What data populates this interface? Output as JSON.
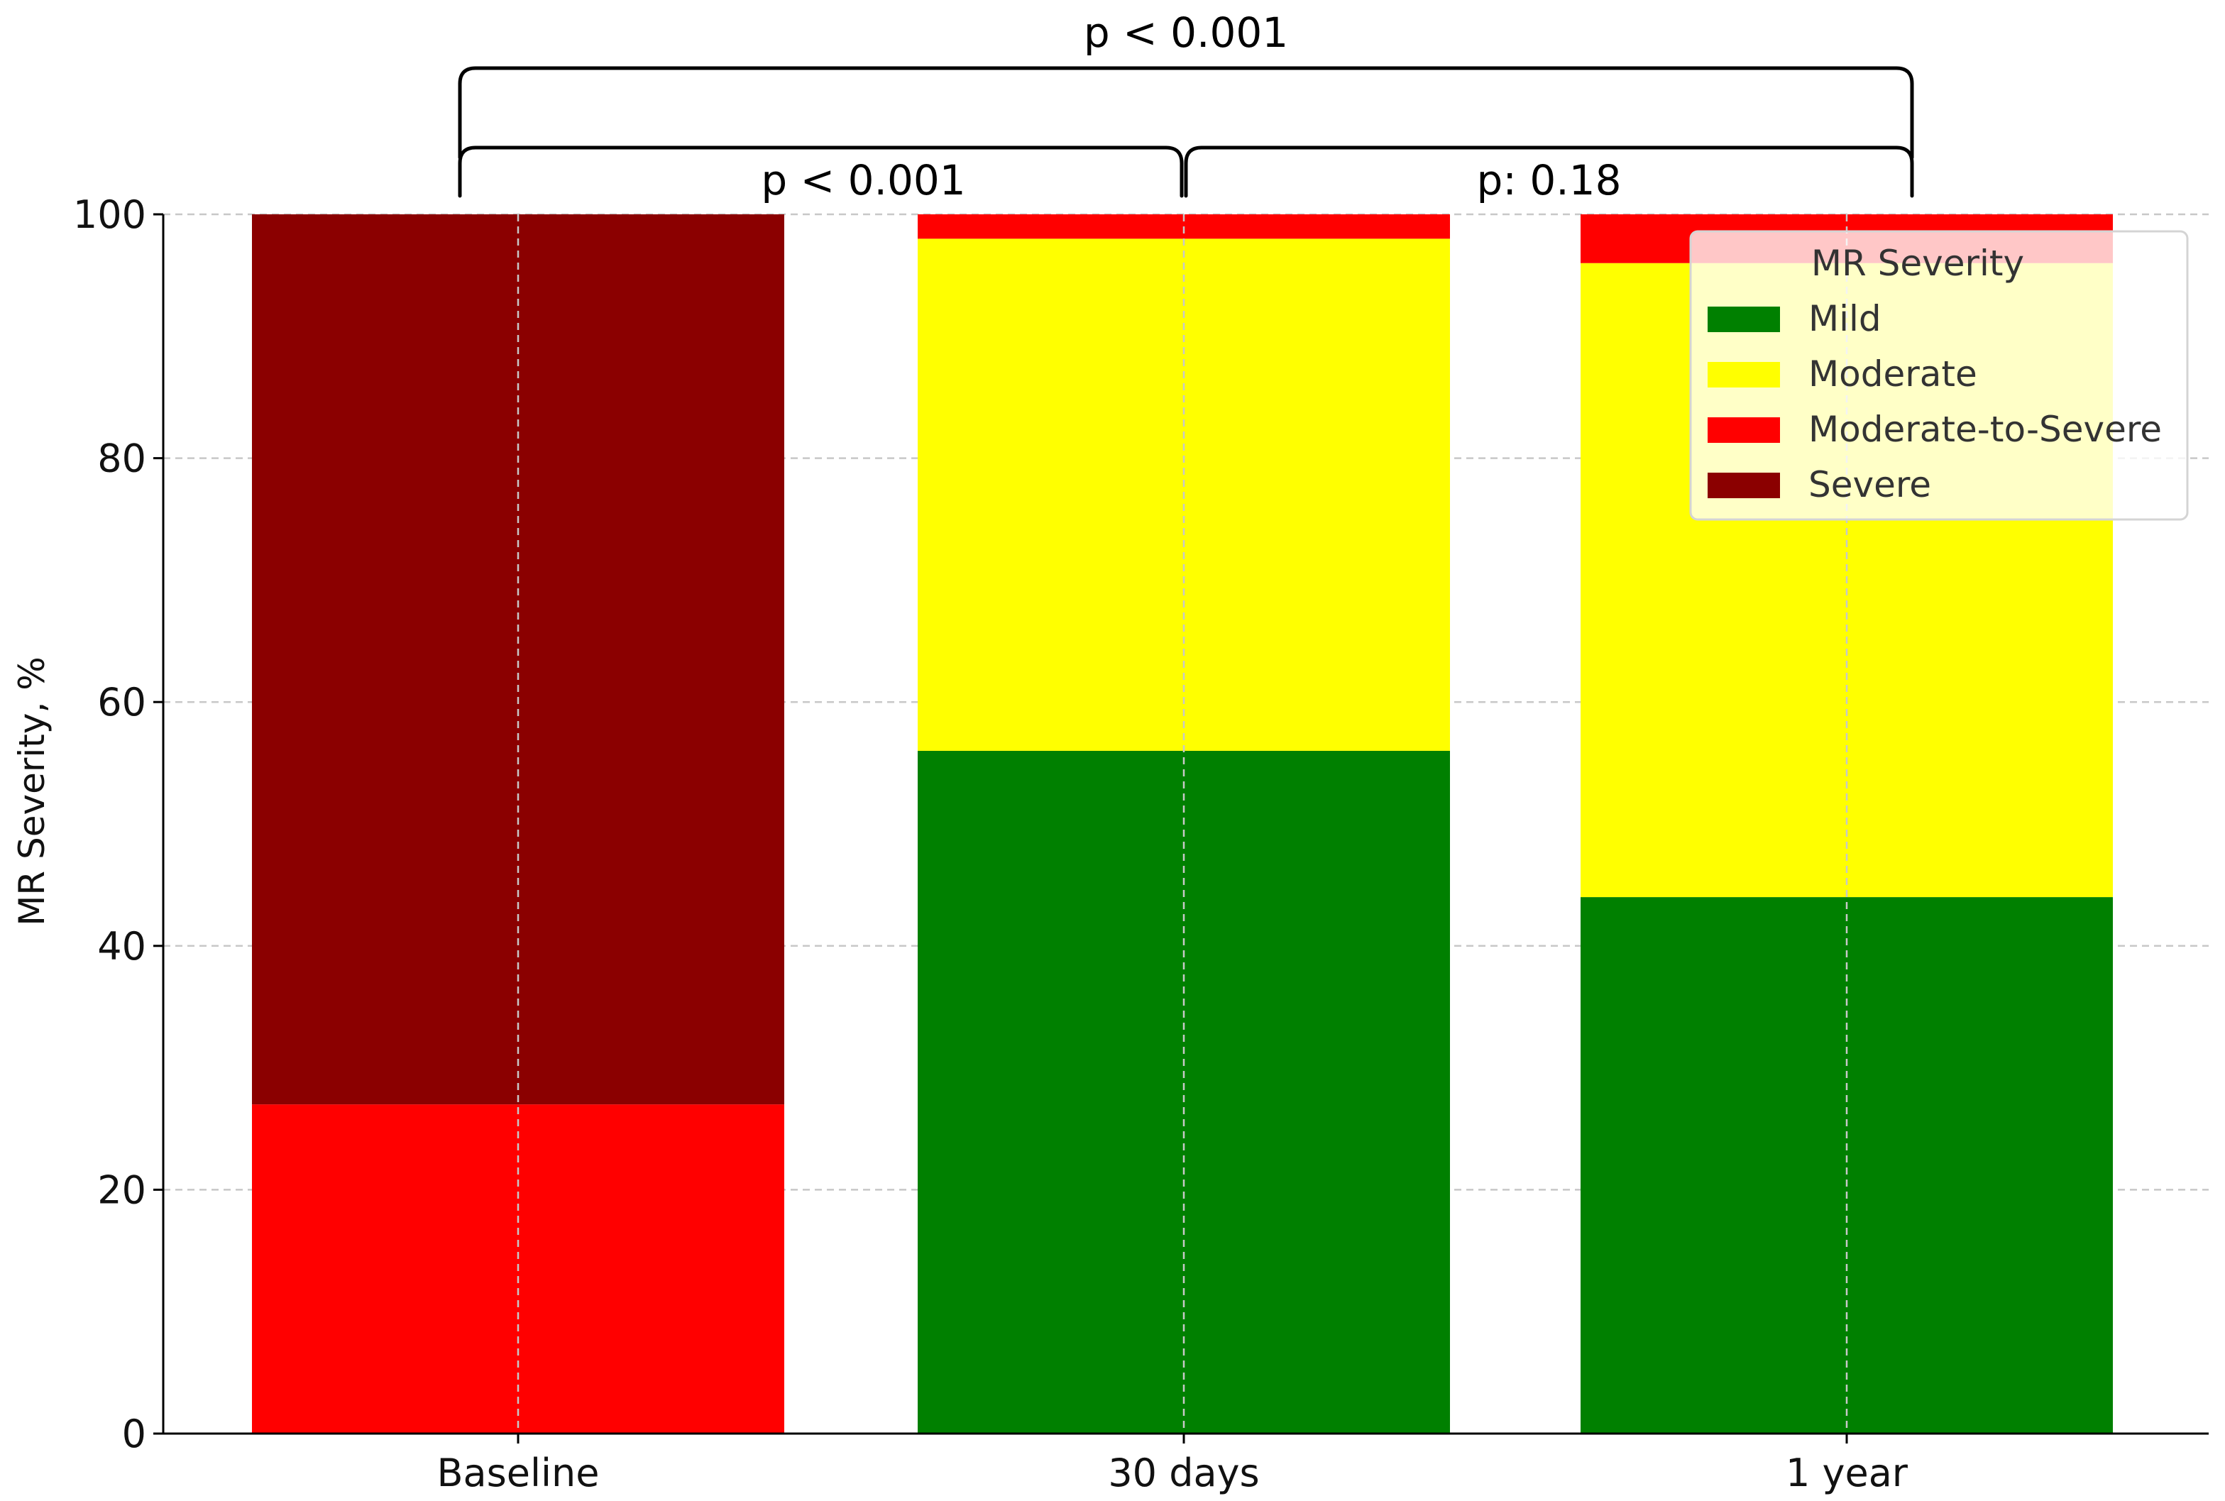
{
  "chart_data": {
    "type": "bar",
    "stacked": true,
    "categories": [
      "Baseline",
      "30 days",
      "1 year"
    ],
    "series": [
      {
        "name": "Mild",
        "color": "#008000",
        "values": [
          0,
          56,
          44
        ]
      },
      {
        "name": "Moderate",
        "color": "#ffff00",
        "values": [
          0,
          42,
          52
        ]
      },
      {
        "name": "Moderate-to-Severe",
        "color": "#ff0000",
        "values": [
          27,
          2,
          4
        ]
      },
      {
        "name": "Severe",
        "color": "#8b0000",
        "values": [
          73,
          0,
          0
        ]
      }
    ],
    "ylabel": "MR Severity, %",
    "ylim": [
      0,
      100
    ],
    "yticks": [
      0,
      20,
      40,
      60,
      80,
      100
    ],
    "grid": true,
    "legend": {
      "title": "MR Severity",
      "placement": "top-right"
    },
    "annotations": [
      {
        "text": "p < 0.001",
        "from": "Baseline",
        "to": "1 year",
        "level": "upper"
      },
      {
        "text": "p < 0.001",
        "from": "Baseline",
        "to": "30 days",
        "level": "lower"
      },
      {
        "text": "p: 0.18",
        "from": "30 days",
        "to": "1 year",
        "level": "lower"
      }
    ]
  }
}
